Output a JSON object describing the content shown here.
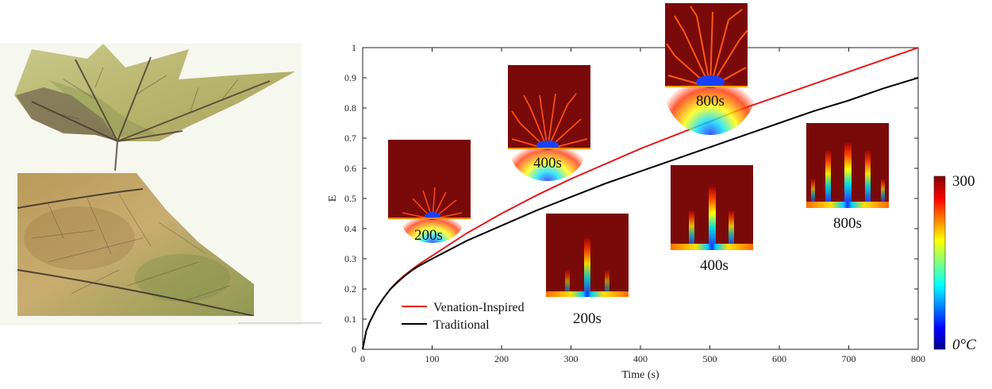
{
  "colors": {
    "venation": "#e41a1c",
    "traditional": "#000000",
    "snapshot_bg": "#7a0a0a"
  },
  "chart_data": {
    "type": "line",
    "xlabel": "Time (s)",
    "ylabel": "E",
    "xlim": [
      0,
      800
    ],
    "ylim": [
      0,
      1
    ],
    "xticks": [
      0,
      100,
      200,
      300,
      400,
      500,
      600,
      700,
      800
    ],
    "yticks": [
      0,
      0.1,
      0.2,
      0.3,
      0.4,
      0.5,
      0.6,
      0.7,
      0.8,
      0.9,
      1
    ],
    "legend_position": "bottom-left",
    "series": [
      {
        "name": "Venation-Inspired",
        "color": "#e41a1c",
        "x": [
          0,
          5,
          10,
          20,
          30,
          40,
          50,
          60,
          70,
          80,
          100,
          150,
          200,
          250,
          300,
          350,
          400,
          450,
          500,
          550,
          600,
          650,
          700,
          750,
          800
        ],
        "y": [
          0,
          0.06,
          0.09,
          0.135,
          0.17,
          0.2,
          0.225,
          0.245,
          0.263,
          0.28,
          0.31,
          0.385,
          0.45,
          0.51,
          0.565,
          0.615,
          0.665,
          0.71,
          0.755,
          0.8,
          0.84,
          0.88,
          0.92,
          0.96,
          1.0
        ]
      },
      {
        "name": "Traditional",
        "color": "#000000",
        "x": [
          0,
          5,
          10,
          20,
          30,
          40,
          50,
          60,
          70,
          80,
          100,
          150,
          200,
          250,
          300,
          350,
          400,
          450,
          500,
          550,
          600,
          650,
          700,
          750,
          800
        ],
        "y": [
          0,
          0.06,
          0.09,
          0.135,
          0.17,
          0.2,
          0.222,
          0.242,
          0.26,
          0.275,
          0.3,
          0.36,
          0.41,
          0.46,
          0.505,
          0.55,
          0.59,
          0.63,
          0.67,
          0.71,
          0.75,
          0.79,
          0.825,
          0.865,
          0.9
        ]
      }
    ],
    "snapshots": [
      {
        "label": "200s",
        "design": "venation"
      },
      {
        "label": "400s",
        "design": "venation"
      },
      {
        "label": "800s",
        "design": "venation"
      },
      {
        "label": "200s",
        "design": "traditional"
      },
      {
        "label": "400s",
        "design": "traditional"
      },
      {
        "label": "800s",
        "design": "traditional"
      }
    ],
    "colorbar": {
      "max_label": "300",
      "min_label": "0°C",
      "colormap": "jet"
    }
  }
}
